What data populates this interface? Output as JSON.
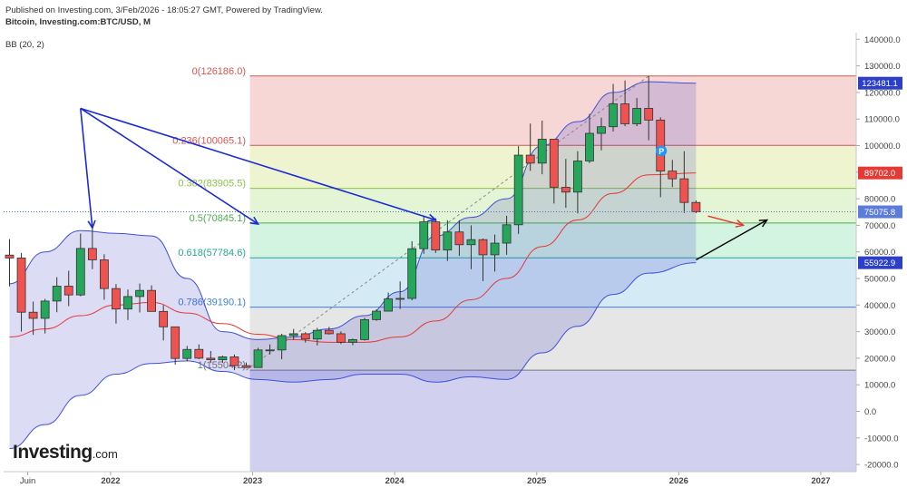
{
  "header": {
    "published": "Published on Investing.com, 3/Feb/2026 - 18:05:27 GMT, Powered by TradingView.",
    "symbol": "Bitcoin, Investing.com:BTC/USD, M",
    "indicator": "BB (20, 2)"
  },
  "logo": {
    "main": "Investing",
    "suffix": ".com"
  },
  "colors": {
    "up": "#26a65b",
    "down": "#ef5350",
    "bb_fill": "#3b3fc9",
    "bb_line": "#3f51d9",
    "bb_mid": "#e53935",
    "fib_line_colors": [
      "#d9534f",
      "#d9534f",
      "#8bc34a",
      "#4caf50",
      "#26a69a",
      "#3f7fdc",
      "#777777"
    ],
    "blue_arrow": "#1b2ad6",
    "black_arrow": "#000000",
    "red_arrow": "#e53935"
  },
  "chart_data": {
    "type": "candlestick",
    "title": "Bitcoin, Investing.com:BTC/USD, M",
    "y_axis": {
      "min": -20000,
      "max": 140000,
      "ticks": [
        140000,
        130000,
        120000,
        110000,
        100000,
        90000,
        80000,
        70000,
        60000,
        50000,
        40000,
        30000,
        20000,
        10000,
        0,
        -10000,
        -20000
      ],
      "tick_labels": [
        "140000.0",
        "130000.0",
        "120000.0",
        "110000.0",
        "100000.0",
        "90000.0",
        "80000.0",
        "70000.0",
        "60000.0",
        "50000.0",
        "40000.0",
        "30000.0",
        "20000.0",
        "10000.0",
        "0.0",
        "-10000.0",
        "-20000.0"
      ]
    },
    "x_axis": {
      "labels": [
        {
          "text": "Juin",
          "date": "2021-06"
        },
        {
          "text": "2022",
          "date": "2022-01"
        },
        {
          "text": "2023",
          "date": "2023-01"
        },
        {
          "text": "2024",
          "date": "2024-01"
        },
        {
          "text": "2025",
          "date": "2025-01"
        },
        {
          "text": "2026",
          "date": "2026-01"
        },
        {
          "text": "2027",
          "date": "2027-01"
        }
      ]
    },
    "candles": [
      {
        "date": "2021-04",
        "o": 58800,
        "h": 64800,
        "l": 47000,
        "c": 57700
      },
      {
        "date": "2021-05",
        "o": 57700,
        "h": 59600,
        "l": 30000,
        "c": 37300
      },
      {
        "date": "2021-06",
        "o": 37300,
        "h": 41300,
        "l": 28800,
        "c": 35000
      },
      {
        "date": "2021-07",
        "o": 35000,
        "h": 42300,
        "l": 29300,
        "c": 41500
      },
      {
        "date": "2021-08",
        "o": 41500,
        "h": 50500,
        "l": 37300,
        "c": 47100
      },
      {
        "date": "2021-09",
        "o": 47100,
        "h": 52900,
        "l": 39600,
        "c": 43800
      },
      {
        "date": "2021-10",
        "o": 43800,
        "h": 66900,
        "l": 43300,
        "c": 61300
      },
      {
        "date": "2021-11",
        "o": 61300,
        "h": 69000,
        "l": 53500,
        "c": 57000
      },
      {
        "date": "2021-12",
        "o": 57000,
        "h": 59100,
        "l": 42000,
        "c": 46200
      },
      {
        "date": "2022-01",
        "o": 46200,
        "h": 47900,
        "l": 33000,
        "c": 38500
      },
      {
        "date": "2022-02",
        "o": 38500,
        "h": 45800,
        "l": 34400,
        "c": 43200
      },
      {
        "date": "2022-03",
        "o": 43200,
        "h": 48100,
        "l": 37200,
        "c": 45500
      },
      {
        "date": "2022-04",
        "o": 45500,
        "h": 47400,
        "l": 37700,
        "c": 37600
      },
      {
        "date": "2022-05",
        "o": 37600,
        "h": 40000,
        "l": 26700,
        "c": 31800
      },
      {
        "date": "2022-06",
        "o": 31800,
        "h": 31900,
        "l": 17600,
        "c": 19900
      },
      {
        "date": "2022-07",
        "o": 19900,
        "h": 24600,
        "l": 18800,
        "c": 23300
      },
      {
        "date": "2022-08",
        "o": 23300,
        "h": 25200,
        "l": 19600,
        "c": 20000
      },
      {
        "date": "2022-09",
        "o": 20000,
        "h": 22700,
        "l": 18200,
        "c": 19400
      },
      {
        "date": "2022-10",
        "o": 19400,
        "h": 21000,
        "l": 18200,
        "c": 20500
      },
      {
        "date": "2022-11",
        "o": 20500,
        "h": 21400,
        "l": 15500,
        "c": 17200
      },
      {
        "date": "2022-12",
        "o": 17200,
        "h": 18400,
        "l": 16300,
        "c": 16500
      },
      {
        "date": "2023-01",
        "o": 16500,
        "h": 23900,
        "l": 16500,
        "c": 23100
      },
      {
        "date": "2023-02",
        "o": 23100,
        "h": 25200,
        "l": 21400,
        "c": 23100
      },
      {
        "date": "2023-03",
        "o": 23100,
        "h": 29200,
        "l": 19600,
        "c": 28500
      },
      {
        "date": "2023-04",
        "o": 28500,
        "h": 31000,
        "l": 26900,
        "c": 29200
      },
      {
        "date": "2023-05",
        "o": 29200,
        "h": 29800,
        "l": 25900,
        "c": 27200
      },
      {
        "date": "2023-06",
        "o": 27200,
        "h": 31400,
        "l": 24800,
        "c": 30500
      },
      {
        "date": "2023-07",
        "o": 30500,
        "h": 31800,
        "l": 28900,
        "c": 29200
      },
      {
        "date": "2023-08",
        "o": 29200,
        "h": 30100,
        "l": 25400,
        "c": 26000
      },
      {
        "date": "2023-09",
        "o": 26000,
        "h": 27400,
        "l": 24900,
        "c": 27000
      },
      {
        "date": "2023-10",
        "o": 27000,
        "h": 35200,
        "l": 26600,
        "c": 34500
      },
      {
        "date": "2023-11",
        "o": 34500,
        "h": 38400,
        "l": 34100,
        "c": 37700
      },
      {
        "date": "2023-12",
        "o": 37700,
        "h": 44700,
        "l": 37600,
        "c": 42300
      },
      {
        "date": "2024-01",
        "o": 42300,
        "h": 48900,
        "l": 38500,
        "c": 42500
      },
      {
        "date": "2024-02",
        "o": 42500,
        "h": 64000,
        "l": 41800,
        "c": 61200
      },
      {
        "date": "2024-03",
        "o": 61200,
        "h": 73700,
        "l": 59300,
        "c": 71300
      },
      {
        "date": "2024-04",
        "o": 71300,
        "h": 72700,
        "l": 59600,
        "c": 60700
      },
      {
        "date": "2024-05",
        "o": 60700,
        "h": 71900,
        "l": 56600,
        "c": 67500
      },
      {
        "date": "2024-06",
        "o": 67500,
        "h": 71900,
        "l": 58500,
        "c": 62700
      },
      {
        "date": "2024-07",
        "o": 62700,
        "h": 70000,
        "l": 53500,
        "c": 64600
      },
      {
        "date": "2024-08",
        "o": 64600,
        "h": 65000,
        "l": 49000,
        "c": 58900
      },
      {
        "date": "2024-09",
        "o": 58900,
        "h": 66500,
        "l": 52600,
        "c": 63300
      },
      {
        "date": "2024-10",
        "o": 63300,
        "h": 73600,
        "l": 58900,
        "c": 70200
      },
      {
        "date": "2024-11",
        "o": 70200,
        "h": 99800,
        "l": 66800,
        "c": 96400
      },
      {
        "date": "2024-12",
        "o": 96400,
        "h": 108300,
        "l": 90500,
        "c": 93400
      },
      {
        "date": "2025-01",
        "o": 93400,
        "h": 109400,
        "l": 89200,
        "c": 102400
      },
      {
        "date": "2025-02",
        "o": 102400,
        "h": 102500,
        "l": 78200,
        "c": 84300
      },
      {
        "date": "2025-03",
        "o": 84300,
        "h": 95000,
        "l": 76600,
        "c": 82500
      },
      {
        "date": "2025-04",
        "o": 82500,
        "h": 97900,
        "l": 74500,
        "c": 94200
      },
      {
        "date": "2025-05",
        "o": 94200,
        "h": 111900,
        "l": 93400,
        "c": 104600
      },
      {
        "date": "2025-06",
        "o": 104600,
        "h": 110500,
        "l": 98200,
        "c": 107100
      },
      {
        "date": "2025-07",
        "o": 107100,
        "h": 123200,
        "l": 105300,
        "c": 115700
      },
      {
        "date": "2025-08",
        "o": 115700,
        "h": 124500,
        "l": 107300,
        "c": 108200
      },
      {
        "date": "2025-09",
        "o": 108200,
        "h": 117900,
        "l": 107300,
        "c": 114000
      },
      {
        "date": "2025-10",
        "o": 114000,
        "h": 126200,
        "l": 102000,
        "c": 109600
      },
      {
        "date": "2025-11",
        "o": 109600,
        "h": 110600,
        "l": 80600,
        "c": 90400
      },
      {
        "date": "2025-12",
        "o": 90400,
        "h": 94600,
        "l": 84400,
        "c": 87500
      },
      {
        "date": "2026-01",
        "o": 87500,
        "h": 97900,
        "l": 74600,
        "c": 78600
      },
      {
        "date": "2026-02",
        "o": 78600,
        "h": 79400,
        "l": 74600,
        "c": 75100
      }
    ],
    "bollinger": {
      "period": 20,
      "stddev": 2,
      "upper": [
        [
          "2021-04",
          48000
        ],
        [
          "2021-07",
          60000
        ],
        [
          "2021-10",
          68000
        ],
        [
          "2022-01",
          67000
        ],
        [
          "2022-04",
          66000
        ],
        [
          "2022-07",
          50000
        ],
        [
          "2022-10",
          30000
        ],
        [
          "2023-01",
          27000
        ],
        [
          "2023-04",
          28000
        ],
        [
          "2023-07",
          31000
        ],
        [
          "2023-10",
          36000
        ],
        [
          "2024-01",
          45000
        ],
        [
          "2024-04",
          66000
        ],
        [
          "2024-07",
          73000
        ],
        [
          "2024-10",
          80000
        ],
        [
          "2025-01",
          100000
        ],
        [
          "2025-04",
          109000
        ],
        [
          "2025-07",
          120000
        ],
        [
          "2025-10",
          124000
        ],
        [
          "2026-02",
          123481.1
        ]
      ],
      "middle": [
        [
          "2021-04",
          28000
        ],
        [
          "2021-07",
          31000
        ],
        [
          "2021-10",
          36000
        ],
        [
          "2022-01",
          40000
        ],
        [
          "2022-04",
          41000
        ],
        [
          "2022-07",
          37000
        ],
        [
          "2022-10",
          33000
        ],
        [
          "2023-01",
          29000
        ],
        [
          "2023-04",
          27000
        ],
        [
          "2023-07",
          26000
        ],
        [
          "2023-10",
          26000
        ],
        [
          "2024-01",
          28000
        ],
        [
          "2024-04",
          34000
        ],
        [
          "2024-07",
          42000
        ],
        [
          "2024-10",
          50000
        ],
        [
          "2025-01",
          62000
        ],
        [
          "2025-04",
          72000
        ],
        [
          "2025-07",
          82000
        ],
        [
          "2025-10",
          89000
        ],
        [
          "2026-02",
          89702.0
        ]
      ],
      "lower": [
        [
          "2021-04",
          -14000
        ],
        [
          "2021-07",
          -5000
        ],
        [
          "2021-10",
          6000
        ],
        [
          "2022-01",
          14000
        ],
        [
          "2022-04",
          18000
        ],
        [
          "2022-07",
          19000
        ],
        [
          "2022-10",
          15000
        ],
        [
          "2023-01",
          12000
        ],
        [
          "2023-04",
          11000
        ],
        [
          "2023-07",
          12000
        ],
        [
          "2023-10",
          14000
        ],
        [
          "2024-01",
          14000
        ],
        [
          "2024-04",
          11000
        ],
        [
          "2024-07",
          13000
        ],
        [
          "2024-10",
          12000
        ],
        [
          "2025-01",
          22000
        ],
        [
          "2025-04",
          32000
        ],
        [
          "2025-07",
          44000
        ],
        [
          "2025-10",
          52000
        ],
        [
          "2026-02",
          55922.9
        ]
      ]
    },
    "fibonacci": {
      "start_date": "2022-12",
      "levels": [
        {
          "ratio": "0",
          "price": 126186.0,
          "label": "0(126186.0)"
        },
        {
          "ratio": "0.236",
          "price": 100065.1,
          "label": "0.236(100065.1)"
        },
        {
          "ratio": "0.382",
          "price": 83905.5,
          "label": "0.382(83905.5)"
        },
        {
          "ratio": "0.5",
          "price": 70845.1,
          "label": "0.5(70845.1)"
        },
        {
          "ratio": "0.618",
          "price": 57784.6,
          "label": "0.618(57784.6)"
        },
        {
          "ratio": "0.786",
          "price": 39190.1,
          "label": "0.786(39190.1)"
        },
        {
          "ratio": "1",
          "price": 15504.2,
          "label": "1(15504.2)"
        }
      ],
      "zone_colors": [
        "rgba(230,120,120,0.30)",
        "rgba(220,230,150,0.45)",
        "rgba(200,235,170,0.50)",
        "rgba(160,230,190,0.45)",
        "rgba(160,210,235,0.45)",
        "rgba(200,200,200,0.45)",
        "rgba(140,140,215,0.40)"
      ]
    },
    "price_badges": [
      {
        "value": "123481.1",
        "price": 123481.1,
        "color": "#2b3fc9"
      },
      {
        "value": "89702.0",
        "price": 89702.0,
        "color": "#e53935"
      },
      {
        "value": "75075.8",
        "price": 75075.8,
        "color": "#5c7cda"
      },
      {
        "value": "55922.9",
        "price": 55922.9,
        "color": "#2b3fc9"
      }
    ],
    "last_price": 75075.8,
    "marker": {
      "text": "P",
      "date": "2025-11",
      "price": 98000
    },
    "annotations": {
      "blue_arrows": [
        {
          "from": [
            "2021-10",
            114000
          ],
          "to": [
            "2021-11",
            69000
          ]
        },
        {
          "from": [
            "2021-10",
            114000
          ],
          "to": [
            "2023-01",
            70500
          ]
        },
        {
          "from": [
            "2021-10",
            114000
          ],
          "to": [
            "2024-04",
            72000
          ]
        }
      ],
      "black_arrow": {
        "from": [
          "2026-02",
          57000
        ],
        "to": [
          "2026-08",
          72000
        ]
      },
      "red_arrow": {
        "from": [
          "2026-03",
          73500
        ],
        "to": [
          "2026-06",
          70000
        ]
      },
      "dashed_trend": {
        "from": [
          "2022-12",
          15504.2
        ],
        "to": [
          "2025-10",
          126186.0
        ]
      }
    }
  }
}
